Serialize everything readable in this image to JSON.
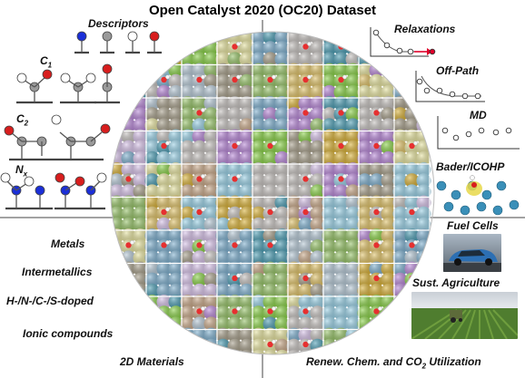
{
  "title": "Open Catalyst 2020 (OC20) Dataset",
  "left_top": {
    "descriptors": "Descriptors",
    "c1_main": "C",
    "c1_sub": "1",
    "c2_main": "C",
    "c2_sub": "2",
    "nx_main": "N",
    "nx_sub": "x"
  },
  "right_top": {
    "relaxations": "Relaxations",
    "off_path": "Off-Path",
    "md": "MD",
    "bader": "Bader/ICOHP"
  },
  "materials": [
    "Metals",
    "Intermetallics",
    "H-/N-/C-/S-doped",
    "Ionic compounds",
    "2D Materials"
  ],
  "applications": {
    "fuel_cells": "Fuel Cells",
    "agriculture": "Sust. Agriculture",
    "renew_prefix": "Renew. Chem. and CO",
    "renew_sub": "2",
    "renew_suffix": " Utilization"
  },
  "colors": {
    "oxygen": "#d81e1e",
    "carbon": "#9a9a9a",
    "nitrogen": "#1b2fd8",
    "hydrogen": "#ffffff",
    "marker": "#e0002a"
  }
}
